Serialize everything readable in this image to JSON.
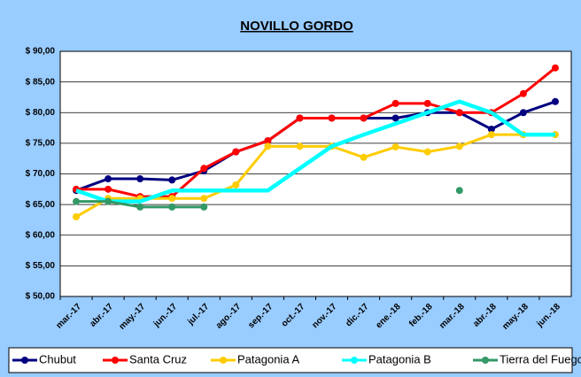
{
  "chart_data": {
    "type": "line",
    "title": "NOVILLO GORDO",
    "categories": [
      "mar.-17",
      "abr.-17",
      "may.-17",
      "jun.-17",
      "jul.-17",
      "ago.-17",
      "sep.-17",
      "oct.-17",
      "nov.-17",
      "dic.-17",
      "ene.-18",
      "feb.-18",
      "mar.-18",
      "abr.-18",
      "may.-18",
      "jun.-18"
    ],
    "series": [
      {
        "name": "Chubut",
        "color": "#000080",
        "values": [
          67.3,
          69.2,
          69.2,
          69.0,
          70.5,
          73.6,
          75.4,
          79.1,
          79.1,
          79.1,
          79.1,
          80.0,
          80.0,
          77.3,
          80.0,
          81.8
        ]
      },
      {
        "name": "Santa Cruz",
        "color": "#ff0000",
        "values": [
          67.5,
          67.5,
          66.3,
          66.3,
          70.9,
          73.6,
          75.4,
          79.1,
          79.1,
          79.1,
          81.5,
          81.5,
          80.0,
          80.0,
          83.1,
          87.3
        ]
      },
      {
        "name": "Patagonia A",
        "color": "#ffcc00",
        "values": [
          63.0,
          66.0,
          66.0,
          66.0,
          66.0,
          68.2,
          74.5,
          74.5,
          74.5,
          72.7,
          74.4,
          73.6,
          74.5,
          76.4,
          76.4,
          76.4
        ]
      },
      {
        "name": "Patagonia B",
        "color": "#00ffff",
        "values": [
          67.3,
          65.5,
          65.5,
          67.3,
          67.3,
          67.3,
          67.3,
          70.9,
          74.5,
          76.4,
          78.2,
          80.0,
          81.8,
          80.0,
          76.4,
          76.4
        ]
      },
      {
        "name": "Tierra del Fuego",
        "color": "#339966",
        "values": [
          65.5,
          65.5,
          64.6,
          64.6,
          64.6,
          null,
          null,
          null,
          null,
          null,
          null,
          null,
          67.3,
          null,
          null,
          null
        ]
      }
    ],
    "ylim": [
      50,
      90
    ],
    "yticks": [
      {
        "value": 50,
        "label": "$ 50,00"
      },
      {
        "value": 55,
        "label": "$ 55,00"
      },
      {
        "value": 60,
        "label": "$ 60,00"
      },
      {
        "value": 65,
        "label": "$ 65,00"
      },
      {
        "value": 70,
        "label": "$ 70,00"
      },
      {
        "value": 75,
        "label": "$ 75,00"
      },
      {
        "value": 80,
        "label": "$ 80,00"
      },
      {
        "value": 85,
        "label": "$ 85,00"
      },
      {
        "value": 90,
        "label": "$ 90,00"
      }
    ],
    "grid": true
  }
}
